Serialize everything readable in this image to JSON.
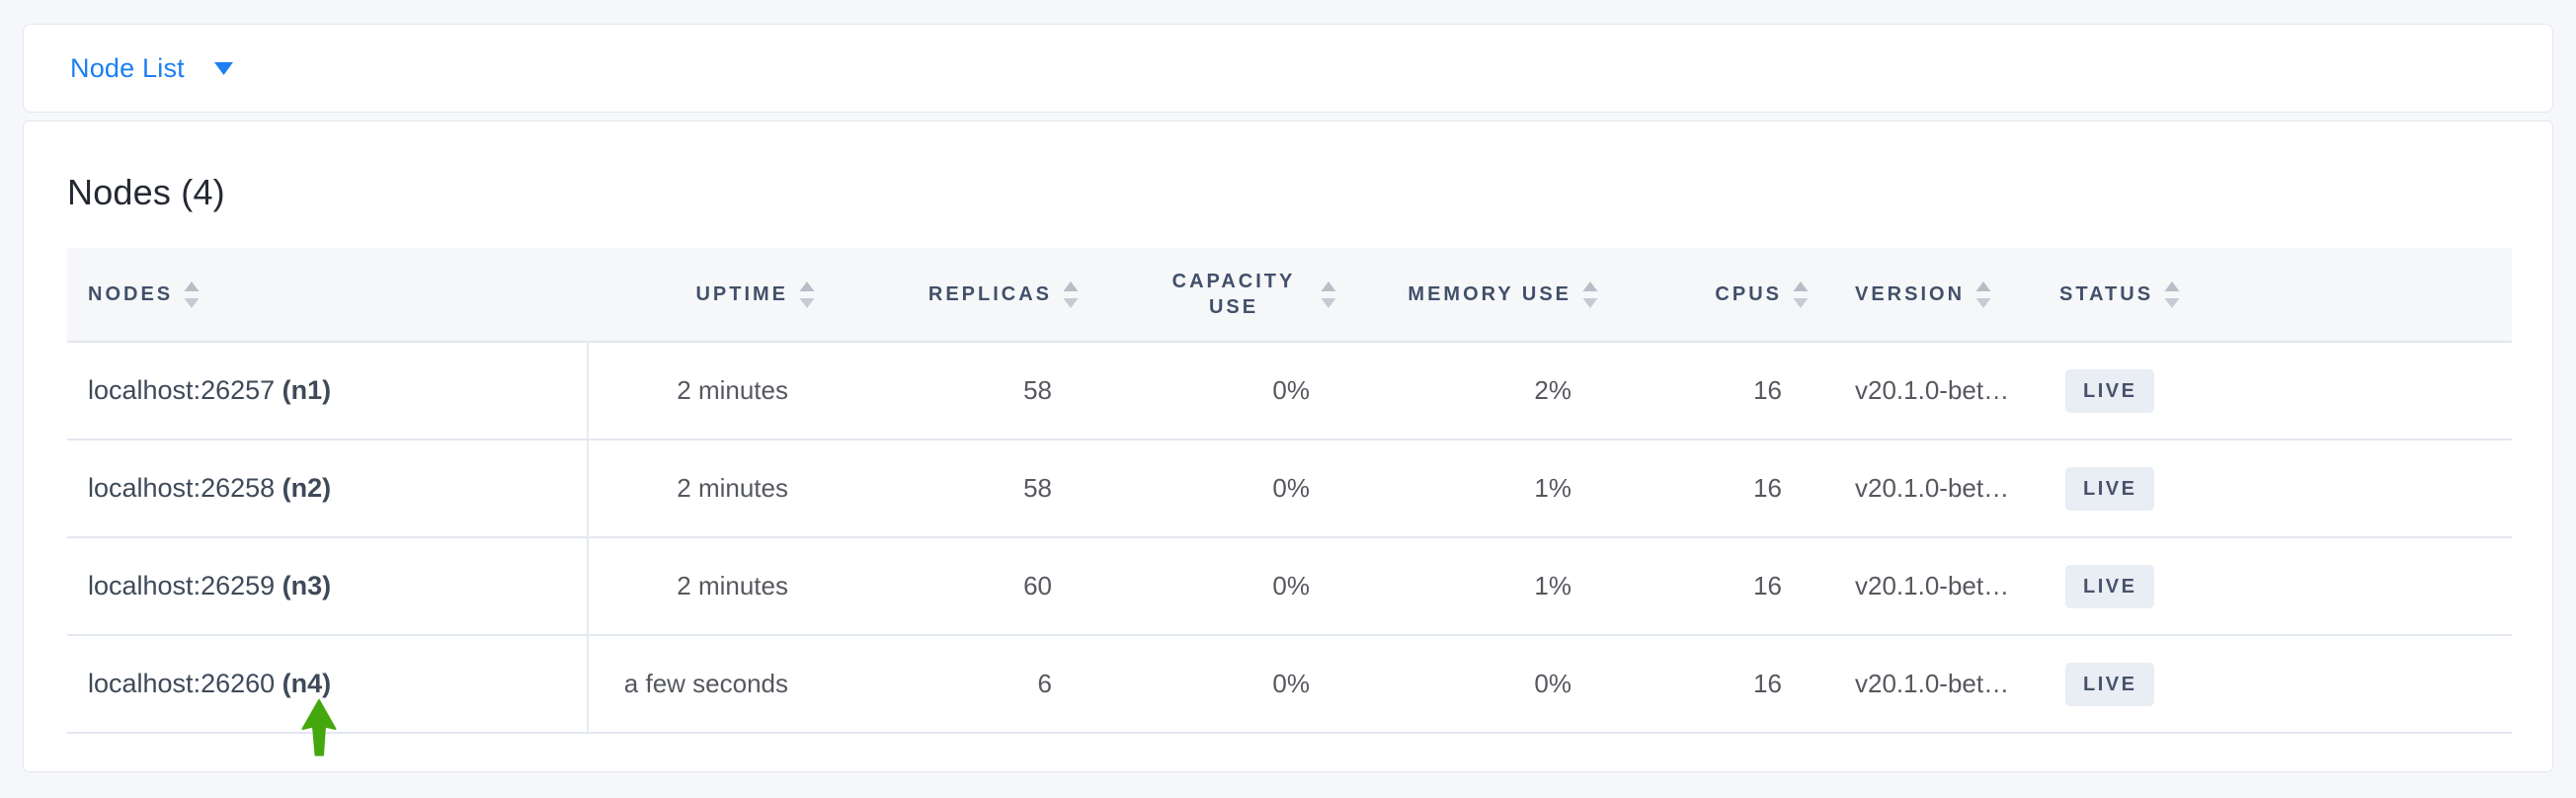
{
  "view_selector": {
    "label": "Node List"
  },
  "page": {
    "title": "Nodes (4)"
  },
  "table": {
    "columns": [
      {
        "id": "nodes",
        "label": "NODES"
      },
      {
        "id": "uptime",
        "label": "UPTIME"
      },
      {
        "id": "replicas",
        "label": "REPLICAS"
      },
      {
        "id": "capacity_use",
        "label": "CAPACITY USE"
      },
      {
        "id": "memory_use",
        "label": "MEMORY USE"
      },
      {
        "id": "cpus",
        "label": "CPUS"
      },
      {
        "id": "version",
        "label": "VERSION"
      },
      {
        "id": "status",
        "label": "STATUS"
      }
    ],
    "rows": [
      {
        "address": "localhost:26257",
        "name": "(n1)",
        "uptime": "2 minutes",
        "replicas": "58",
        "capacity_use": "0%",
        "memory_use": "2%",
        "cpus": "16",
        "version": "v20.1.0-bet…",
        "status": "LIVE"
      },
      {
        "address": "localhost:26258",
        "name": "(n2)",
        "uptime": "2 minutes",
        "replicas": "58",
        "capacity_use": "0%",
        "memory_use": "1%",
        "cpus": "16",
        "version": "v20.1.0-bet…",
        "status": "LIVE"
      },
      {
        "address": "localhost:26259",
        "name": "(n3)",
        "uptime": "2 minutes",
        "replicas": "60",
        "capacity_use": "0%",
        "memory_use": "1%",
        "cpus": "16",
        "version": "v20.1.0-bet…",
        "status": "LIVE"
      },
      {
        "address": "localhost:26260",
        "name": "(n4)",
        "uptime": "a few seconds",
        "replicas": "6",
        "capacity_use": "0%",
        "memory_use": "0%",
        "cpus": "16",
        "version": "v20.1.0-bet…",
        "status": "LIVE"
      }
    ]
  },
  "annotation": {
    "icon": "arrow-up-icon",
    "points_to": "(n4)"
  },
  "icons": {
    "caret_down": "caret-down-icon",
    "sort": "sort-arrows-icon",
    "annotation_arrow": "arrow-up-icon"
  },
  "colors": {
    "accent_blue": "#1d7ff2",
    "arrow_green": "#45a70e",
    "page_background": "#f5f7fa",
    "card_background": "#ffffff",
    "card_border": "#e4e7ed",
    "table_header_background": "#f6f7f9",
    "table_header_text": "#41506a",
    "row_divider": "#e3e7ef",
    "cell_text": "#55585e",
    "node_text": "#3e4959",
    "badge_background": "#e9edf4",
    "badge_text": "#47536b",
    "sort_arrow": "#c2c7d0"
  }
}
